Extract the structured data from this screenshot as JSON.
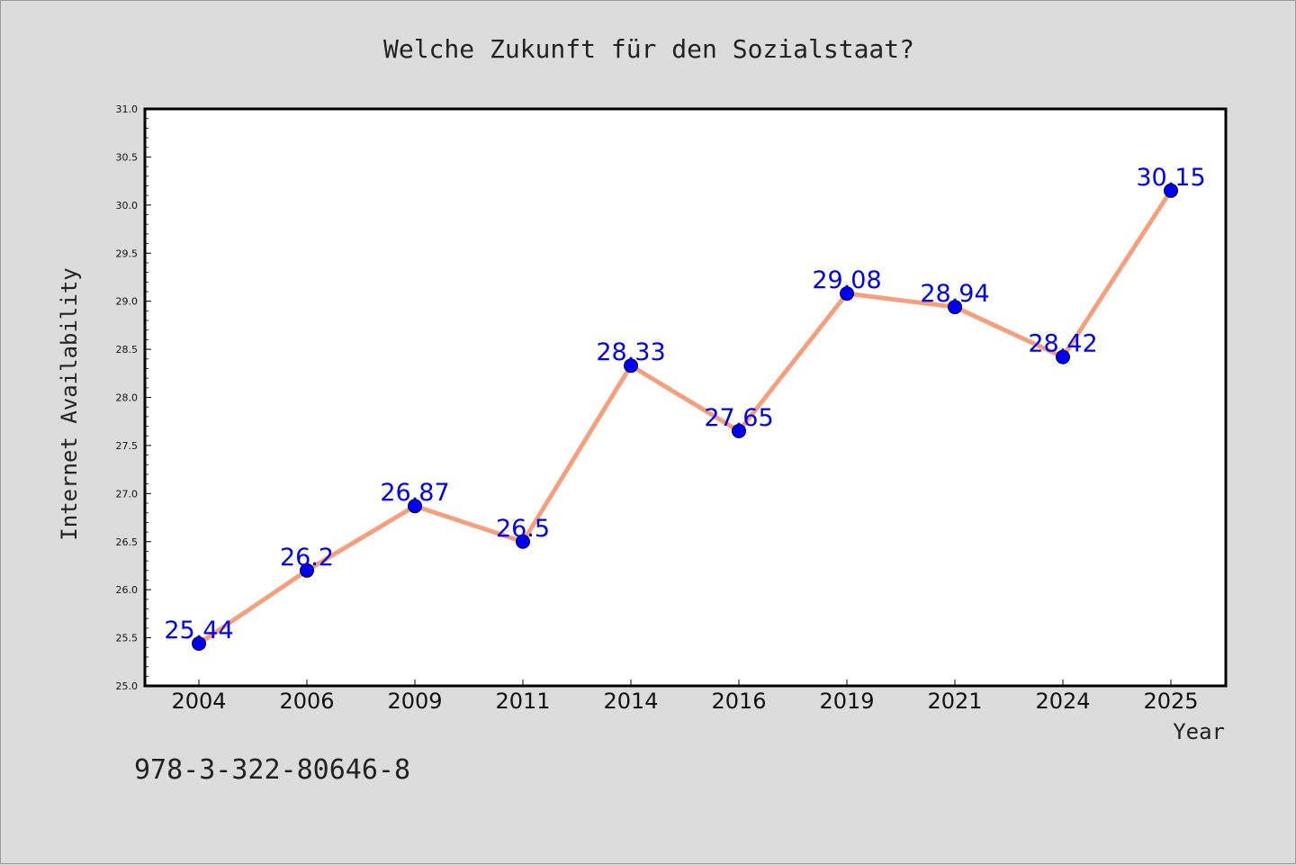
{
  "footer_text": "978-3-322-80646-8",
  "colors": {
    "background": "#dcdcdc",
    "plot_background": "#ffffff",
    "line": "#f4a07e",
    "marker": "#0000ee",
    "data_label": "#0000ee"
  },
  "chart_data": {
    "type": "line",
    "title": "Welche Zukunft für den Sozialstaat?",
    "xlabel": "Year",
    "ylabel": "Internet Availability",
    "categories": [
      "2004",
      "2006",
      "2009",
      "2011",
      "2014",
      "2016",
      "2019",
      "2021",
      "2024",
      "2025"
    ],
    "series": [
      {
        "values": [
          25.44,
          26.2,
          26.87,
          26.5,
          28.33,
          27.65,
          29.08,
          28.94,
          28.42,
          30.15
        ],
        "labels": [
          "25.44",
          "26.2",
          "26.87",
          "26.5",
          "28.33",
          "27.65",
          "29.08",
          "28.94",
          "28.42",
          "30.15"
        ]
      }
    ],
    "ylim": [
      25.0,
      31.0
    ],
    "yticks": [
      "25.0",
      "25.5",
      "26.0",
      "26.5",
      "27.0",
      "27.5",
      "28.0",
      "28.5",
      "29.0",
      "29.5",
      "30.0",
      "30.5",
      "31.0"
    ],
    "grid": false,
    "legend": "none",
    "marker": "circle"
  }
}
